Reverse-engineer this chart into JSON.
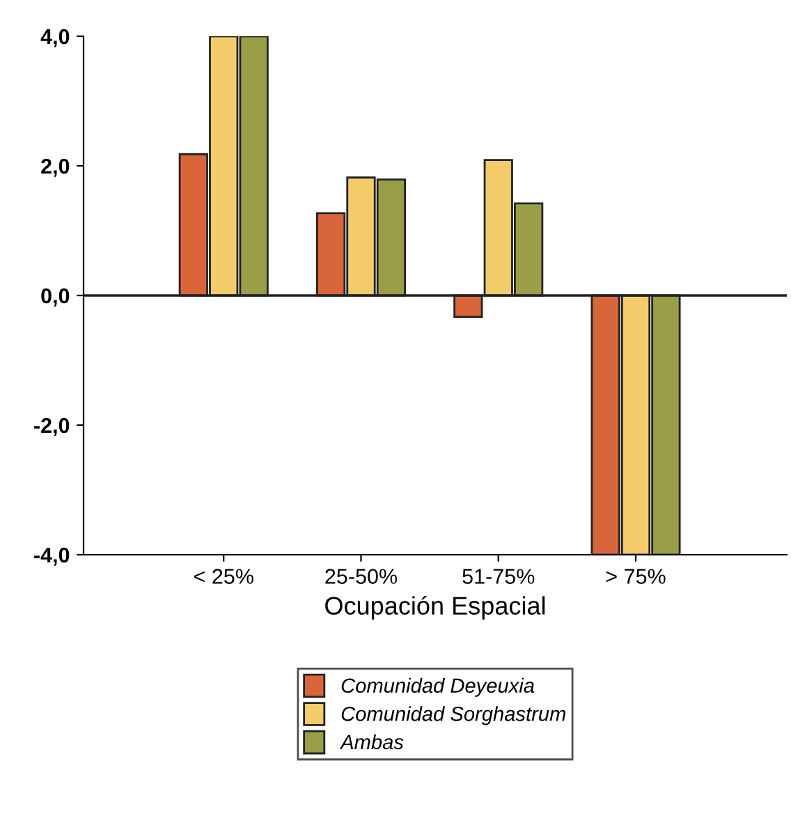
{
  "chart_data": {
    "type": "bar",
    "xlabel": "Ocupación Espacial",
    "categories": [
      "< 25%",
      "25-50%",
      "51-75%",
      "> 75%"
    ],
    "series": [
      {
        "name": "Comunidad Deyeuxia",
        "color": "#d9663a",
        "values": [
          2.18,
          1.27,
          -0.33,
          -4.0
        ]
      },
      {
        "name": "Comunidad Sorghastrum",
        "color": "#f4cc6c",
        "values": [
          4.0,
          1.82,
          2.09,
          -4.0
        ]
      },
      {
        "name": "Ambas",
        "color": "#9a9e48",
        "values": [
          4.0,
          1.79,
          1.42,
          -4.0
        ]
      }
    ],
    "ylim": [
      -4.0,
      4.0
    ],
    "yticks": [
      {
        "value": -4,
        "label": "-4,0"
      },
      {
        "value": -2,
        "label": "-2,0"
      },
      {
        "value": 0,
        "label": "0,0"
      },
      {
        "value": 2,
        "label": "2,0"
      },
      {
        "value": 4,
        "label": "4,0"
      }
    ],
    "ref_lines": [
      {
        "axis": "y",
        "value": 0,
        "color": "#222222"
      }
    ],
    "legend": "bottom"
  }
}
